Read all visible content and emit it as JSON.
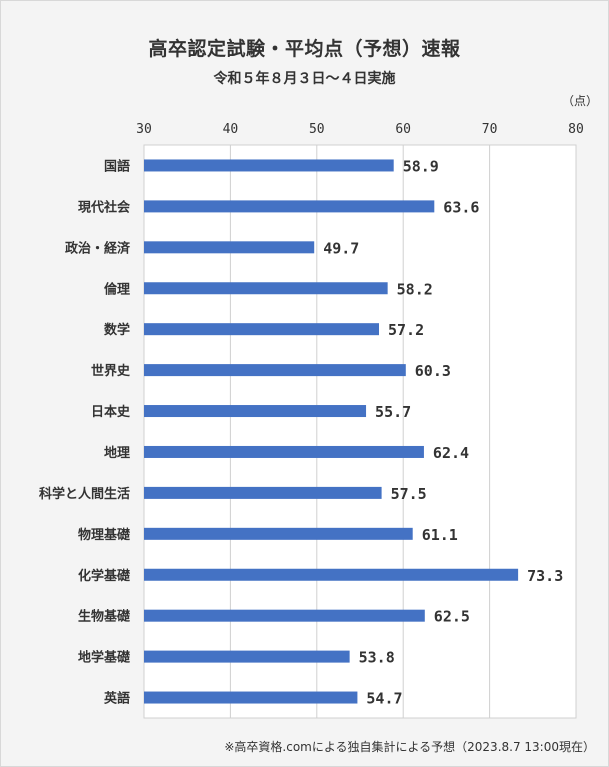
{
  "chart_data": {
    "type": "bar",
    "orientation": "horizontal",
    "title": "高卒認定試験・平均点（予想）速報",
    "subtitle": "令和５年８月３日～４日実施",
    "unit_label": "（点）",
    "note": "※高卒資格.comによる独自集計による予想（2023.8.7 13:00現在）",
    "xlim": [
      30,
      80
    ],
    "xticks": [
      30,
      40,
      50,
      60,
      70,
      80
    ],
    "grid": true,
    "bar_color": "#4472c4",
    "categories": [
      "国語",
      "現代社会",
      "政治・経済",
      "倫理",
      "数学",
      "世界史",
      "日本史",
      "地理",
      "科学と人間生活",
      "物理基礎",
      "化学基礎",
      "生物基礎",
      "地学基礎",
      "英語"
    ],
    "values": [
      58.9,
      63.6,
      49.7,
      58.2,
      57.2,
      60.3,
      55.7,
      62.4,
      57.5,
      61.1,
      73.3,
      62.5,
      53.8,
      54.7
    ],
    "value_labels": [
      "58.9",
      "63.6",
      "49.7",
      "58.2",
      "57.2",
      "60.3",
      "55.7",
      "62.4",
      "57.5",
      "61.1",
      "73.3",
      "62.5",
      "53.8",
      "54.7"
    ]
  }
}
